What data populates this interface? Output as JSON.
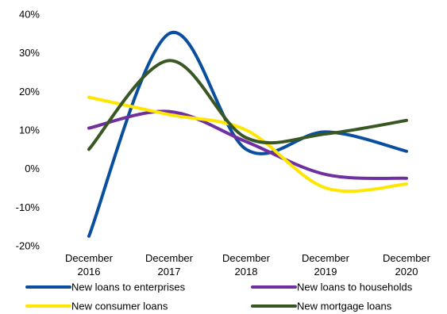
{
  "chart_data": {
    "type": "line",
    "title": "",
    "xlabel": "",
    "ylabel": "",
    "categories": [
      [
        "December",
        "2016"
      ],
      [
        "December",
        "2017"
      ],
      [
        "December",
        "2018"
      ],
      [
        "December",
        "2019"
      ],
      [
        "December",
        "2020"
      ]
    ],
    "y_ticks": [
      "40%",
      "30%",
      "20%",
      "10%",
      "0%",
      "-10%",
      "-20%"
    ],
    "y_tick_values": [
      40,
      30,
      20,
      10,
      0,
      -10,
      -20
    ],
    "ylim": [
      -20,
      40
    ],
    "grid": false,
    "smooth": true,
    "legend_position": "bottom",
    "series": [
      {
        "name": "New loans to enterprises",
        "color": "#0A4F9E",
        "values": [
          -17.5,
          35,
          5,
          9.5,
          4.5
        ]
      },
      {
        "name": "New loans to households",
        "color": "#7030A0",
        "values": [
          10.5,
          14.8,
          7,
          -1.5,
          -2.5
        ]
      },
      {
        "name": "New consumer loans",
        "color": "#FFE600",
        "values": [
          18.5,
          14,
          10,
          -5,
          -4
        ]
      },
      {
        "name": "New mortgage loans",
        "color": "#385723",
        "values": [
          5,
          28,
          8,
          9,
          12.5
        ]
      }
    ]
  }
}
